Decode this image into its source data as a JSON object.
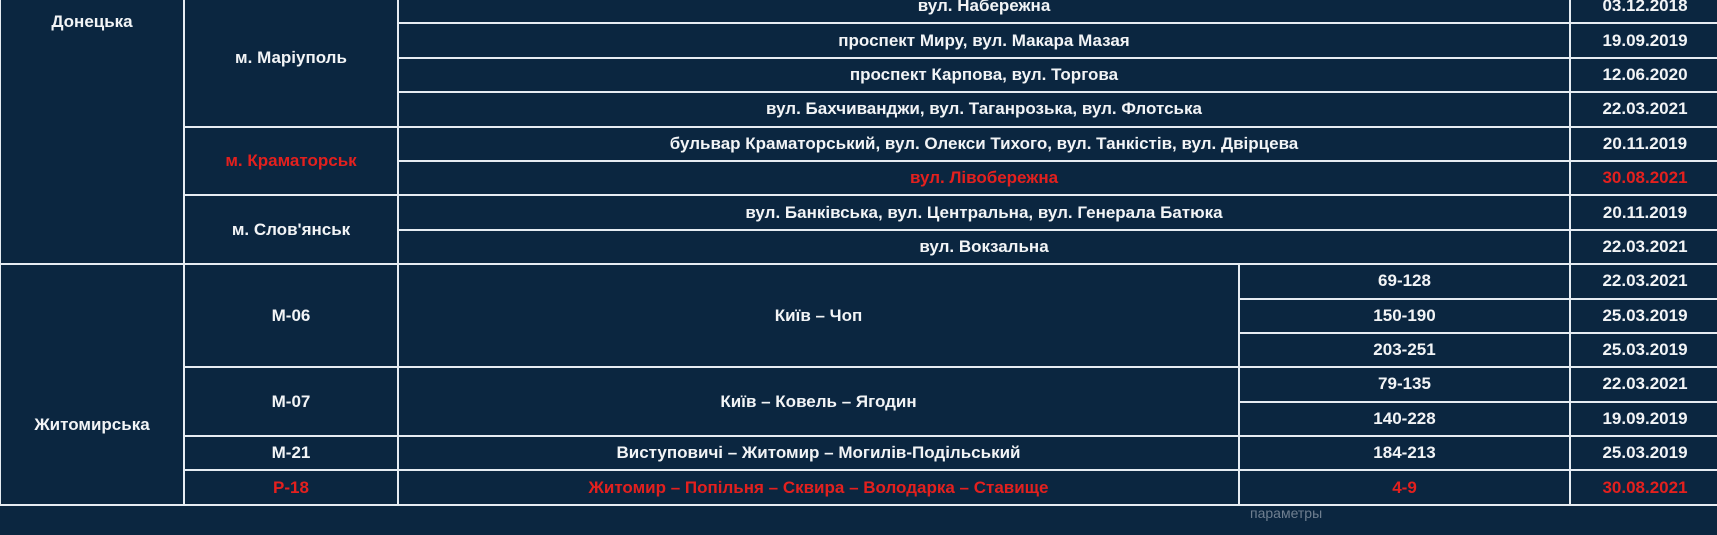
{
  "colors": {
    "background": "#0b2640",
    "text": "#f2f4f6",
    "highlight": "#e3201e",
    "grid": "#e6ecf2"
  },
  "regions": [
    {
      "name": "Донецька",
      "cities": [
        {
          "name": "м. Маріуполь",
          "highlight": false,
          "streets": [
            {
              "street": "вул. Набережна",
              "date": "03.12.2018"
            },
            {
              "street": "проспект Миру, вул. Макара Мазая",
              "date": "19.09.2019"
            },
            {
              "street": "проспект Карпова, вул. Торгова",
              "date": "12.06.2020"
            },
            {
              "street": "вул. Бахчиванджи, вул. Таганрозька, вул. Флотська",
              "date": "22.03.2021"
            }
          ]
        },
        {
          "name": "м. Краматорськ",
          "highlight": true,
          "streets": [
            {
              "street": "бульвар Краматорський, вул. Олекси Тихого, вул. Танкістів, вул. Двірцева",
              "date": "20.11.2019"
            },
            {
              "street": "вул. Лівобережна",
              "date": "30.08.2021",
              "highlight": true
            }
          ]
        },
        {
          "name": "м. Слов'янськ",
          "highlight": false,
          "streets": [
            {
              "street": "вул. Банківська, вул. Центральна, вул. Генерала Батюка",
              "date": "20.11.2019"
            },
            {
              "street": "вул. Вокзальна",
              "date": "22.03.2021"
            }
          ]
        }
      ]
    },
    {
      "name": "Житомирська",
      "roads": [
        {
          "code": "М-06",
          "route": "Київ – Чоп",
          "sections": [
            {
              "km": "69-128",
              "date": "22.03.2021"
            },
            {
              "km": "150-190",
              "date": "25.03.2019"
            },
            {
              "km": "203-251",
              "date": "25.03.2019"
            }
          ]
        },
        {
          "code": "М-07",
          "route": "Київ – Ковель – Ягодин",
          "sections": [
            {
              "km": "79-135",
              "date": "22.03.2021"
            },
            {
              "km": "140-228",
              "date": "19.09.2019"
            }
          ]
        },
        {
          "code": "М-21",
          "route": "Виступовичі – Житомир – Могилів-Подільський",
          "sections": [
            {
              "km": "184-213",
              "date": "25.03.2019"
            }
          ]
        },
        {
          "code": "Р-18",
          "route": "Житомир – Попільня – Сквира – Володарка – Ставище",
          "highlight": true,
          "sections": [
            {
              "km": "4-9",
              "date": "30.08.2021"
            }
          ]
        }
      ]
    }
  ],
  "watermark": "параметры"
}
